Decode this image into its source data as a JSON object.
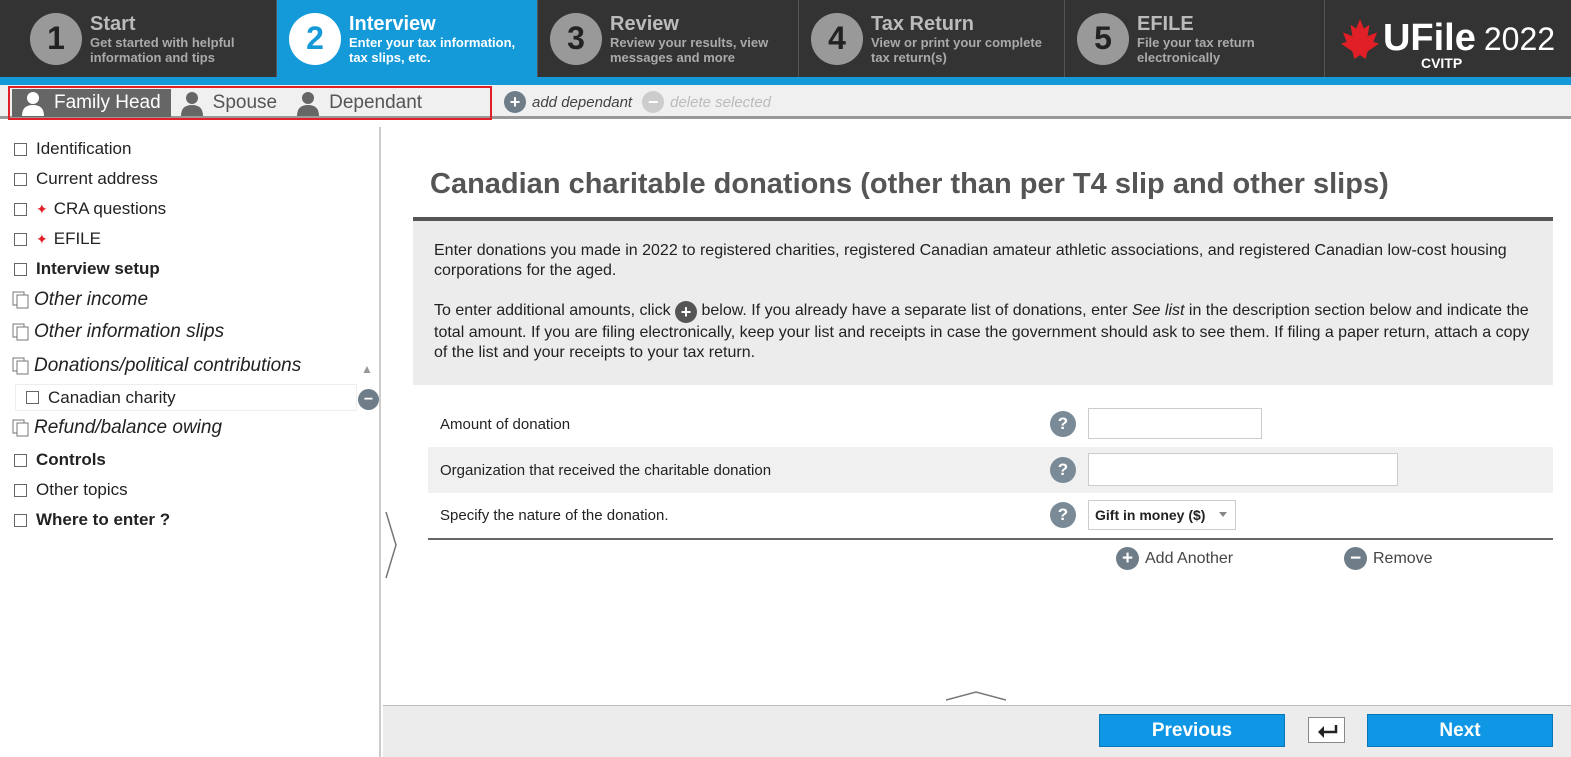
{
  "steps": [
    {
      "number": "1",
      "title": "Start",
      "subtitle": "Get started with helpful information and tips"
    },
    {
      "number": "2",
      "title": "Interview",
      "subtitle": "Enter your tax information, tax slips, etc."
    },
    {
      "number": "3",
      "title": "Review",
      "subtitle": "Review your results, view messages and more"
    },
    {
      "number": "4",
      "title": "Tax Return",
      "subtitle": "View or print your complete tax return(s)"
    },
    {
      "number": "5",
      "title": "EFILE",
      "subtitle": "File your tax return electronically"
    }
  ],
  "logo": {
    "brand": "UFile",
    "year": "2022",
    "edition": "CVITP",
    "color": "#e01f26"
  },
  "person_tabs": [
    {
      "label": "Family Head",
      "icon": "person-icon",
      "active": true
    },
    {
      "label": "Spouse",
      "icon": "person-icon",
      "active": false
    },
    {
      "label": "Dependant",
      "icon": "person-icon",
      "active": false
    }
  ],
  "dependant_actions": {
    "add": "add dependant",
    "delete": "delete selected"
  },
  "sidebar": {
    "items": [
      {
        "label": "Identification"
      },
      {
        "label": "Current address"
      },
      {
        "label": "CRA questions"
      },
      {
        "label": "EFILE"
      },
      {
        "label": "Interview setup"
      },
      {
        "label": "Other income"
      },
      {
        "label": "Other information slips"
      },
      {
        "label": "Donations/political contributions"
      },
      {
        "label": "Refund/balance owing"
      },
      {
        "label": "Controls"
      },
      {
        "label": "Other topics"
      },
      {
        "label": "Where to enter ?"
      }
    ],
    "sub_item": "Canadian charity"
  },
  "main": {
    "title": "Canadian charitable donations (other than per T4 slip and other slips)",
    "info_p1": "Enter donations you made in 2022 to registered charities, registered Canadian amateur athletic associations, and registered Canadian low-cost housing corporations for the aged.",
    "info_p2_a": "To enter additional amounts, click",
    "info_p2_b": "below. If you already have a separate list of donations, enter",
    "info_p2_see": "See list",
    "info_p2_c": "in the description section below and indicate the total amount. If you are filing electronically, keep your list and receipts in case the government should ask to see them. If filing a paper return, attach a copy of the list and your receipts to your tax return.",
    "fields": {
      "amount_label": "Amount of donation",
      "amount_value": "",
      "org_label": "Organization that received the charitable donation",
      "org_value": "",
      "nature_label": "Specify the nature of the donation.",
      "nature_value": "Gift in money ($)"
    },
    "add_another": "Add Another",
    "remove": "Remove"
  },
  "footer": {
    "previous": "Previous",
    "next": "Next"
  },
  "colors": {
    "accent": "#149ad9",
    "button": "#0f97e6",
    "highlight_border": "#e01f26"
  }
}
